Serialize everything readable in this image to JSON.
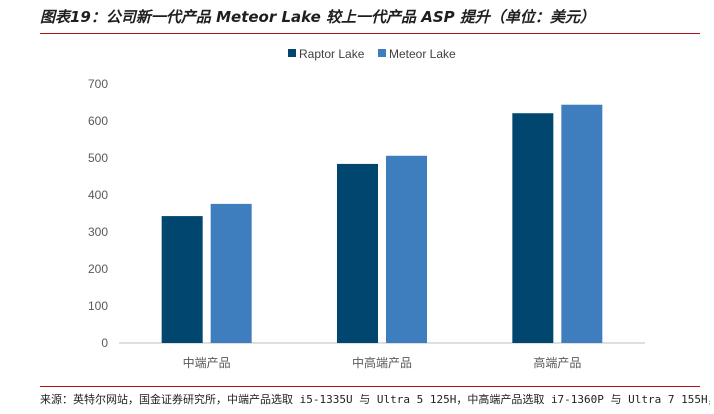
{
  "title": "图表19：公司新一代产品 Meteor Lake 较上一代产品 ASP 提升（单位：美元）",
  "source": "来源：英特尔网站，国金证券研究所，中端产品选取 i5-1335U 与 Ultra 5 125H，中高端产品选取 i7-1360P 与 Ultra 7 155H，",
  "colors": {
    "raptor": "#00466f",
    "meteor": "#3f7ebe",
    "title_rule": "#b50f1a"
  },
  "chart_data": {
    "type": "bar",
    "categories": [
      "中端产品",
      "中高端产品",
      "高端产品"
    ],
    "series": [
      {
        "name": "Raptor Lake",
        "values": [
          343,
          484,
          621
        ]
      },
      {
        "name": "Meteor Lake",
        "values": [
          376,
          506,
          644
        ]
      }
    ],
    "yticks": [
      0,
      100,
      200,
      300,
      400,
      500,
      600,
      700
    ],
    "ylim": [
      0,
      700
    ],
    "legend": "top-center",
    "grid": false
  }
}
